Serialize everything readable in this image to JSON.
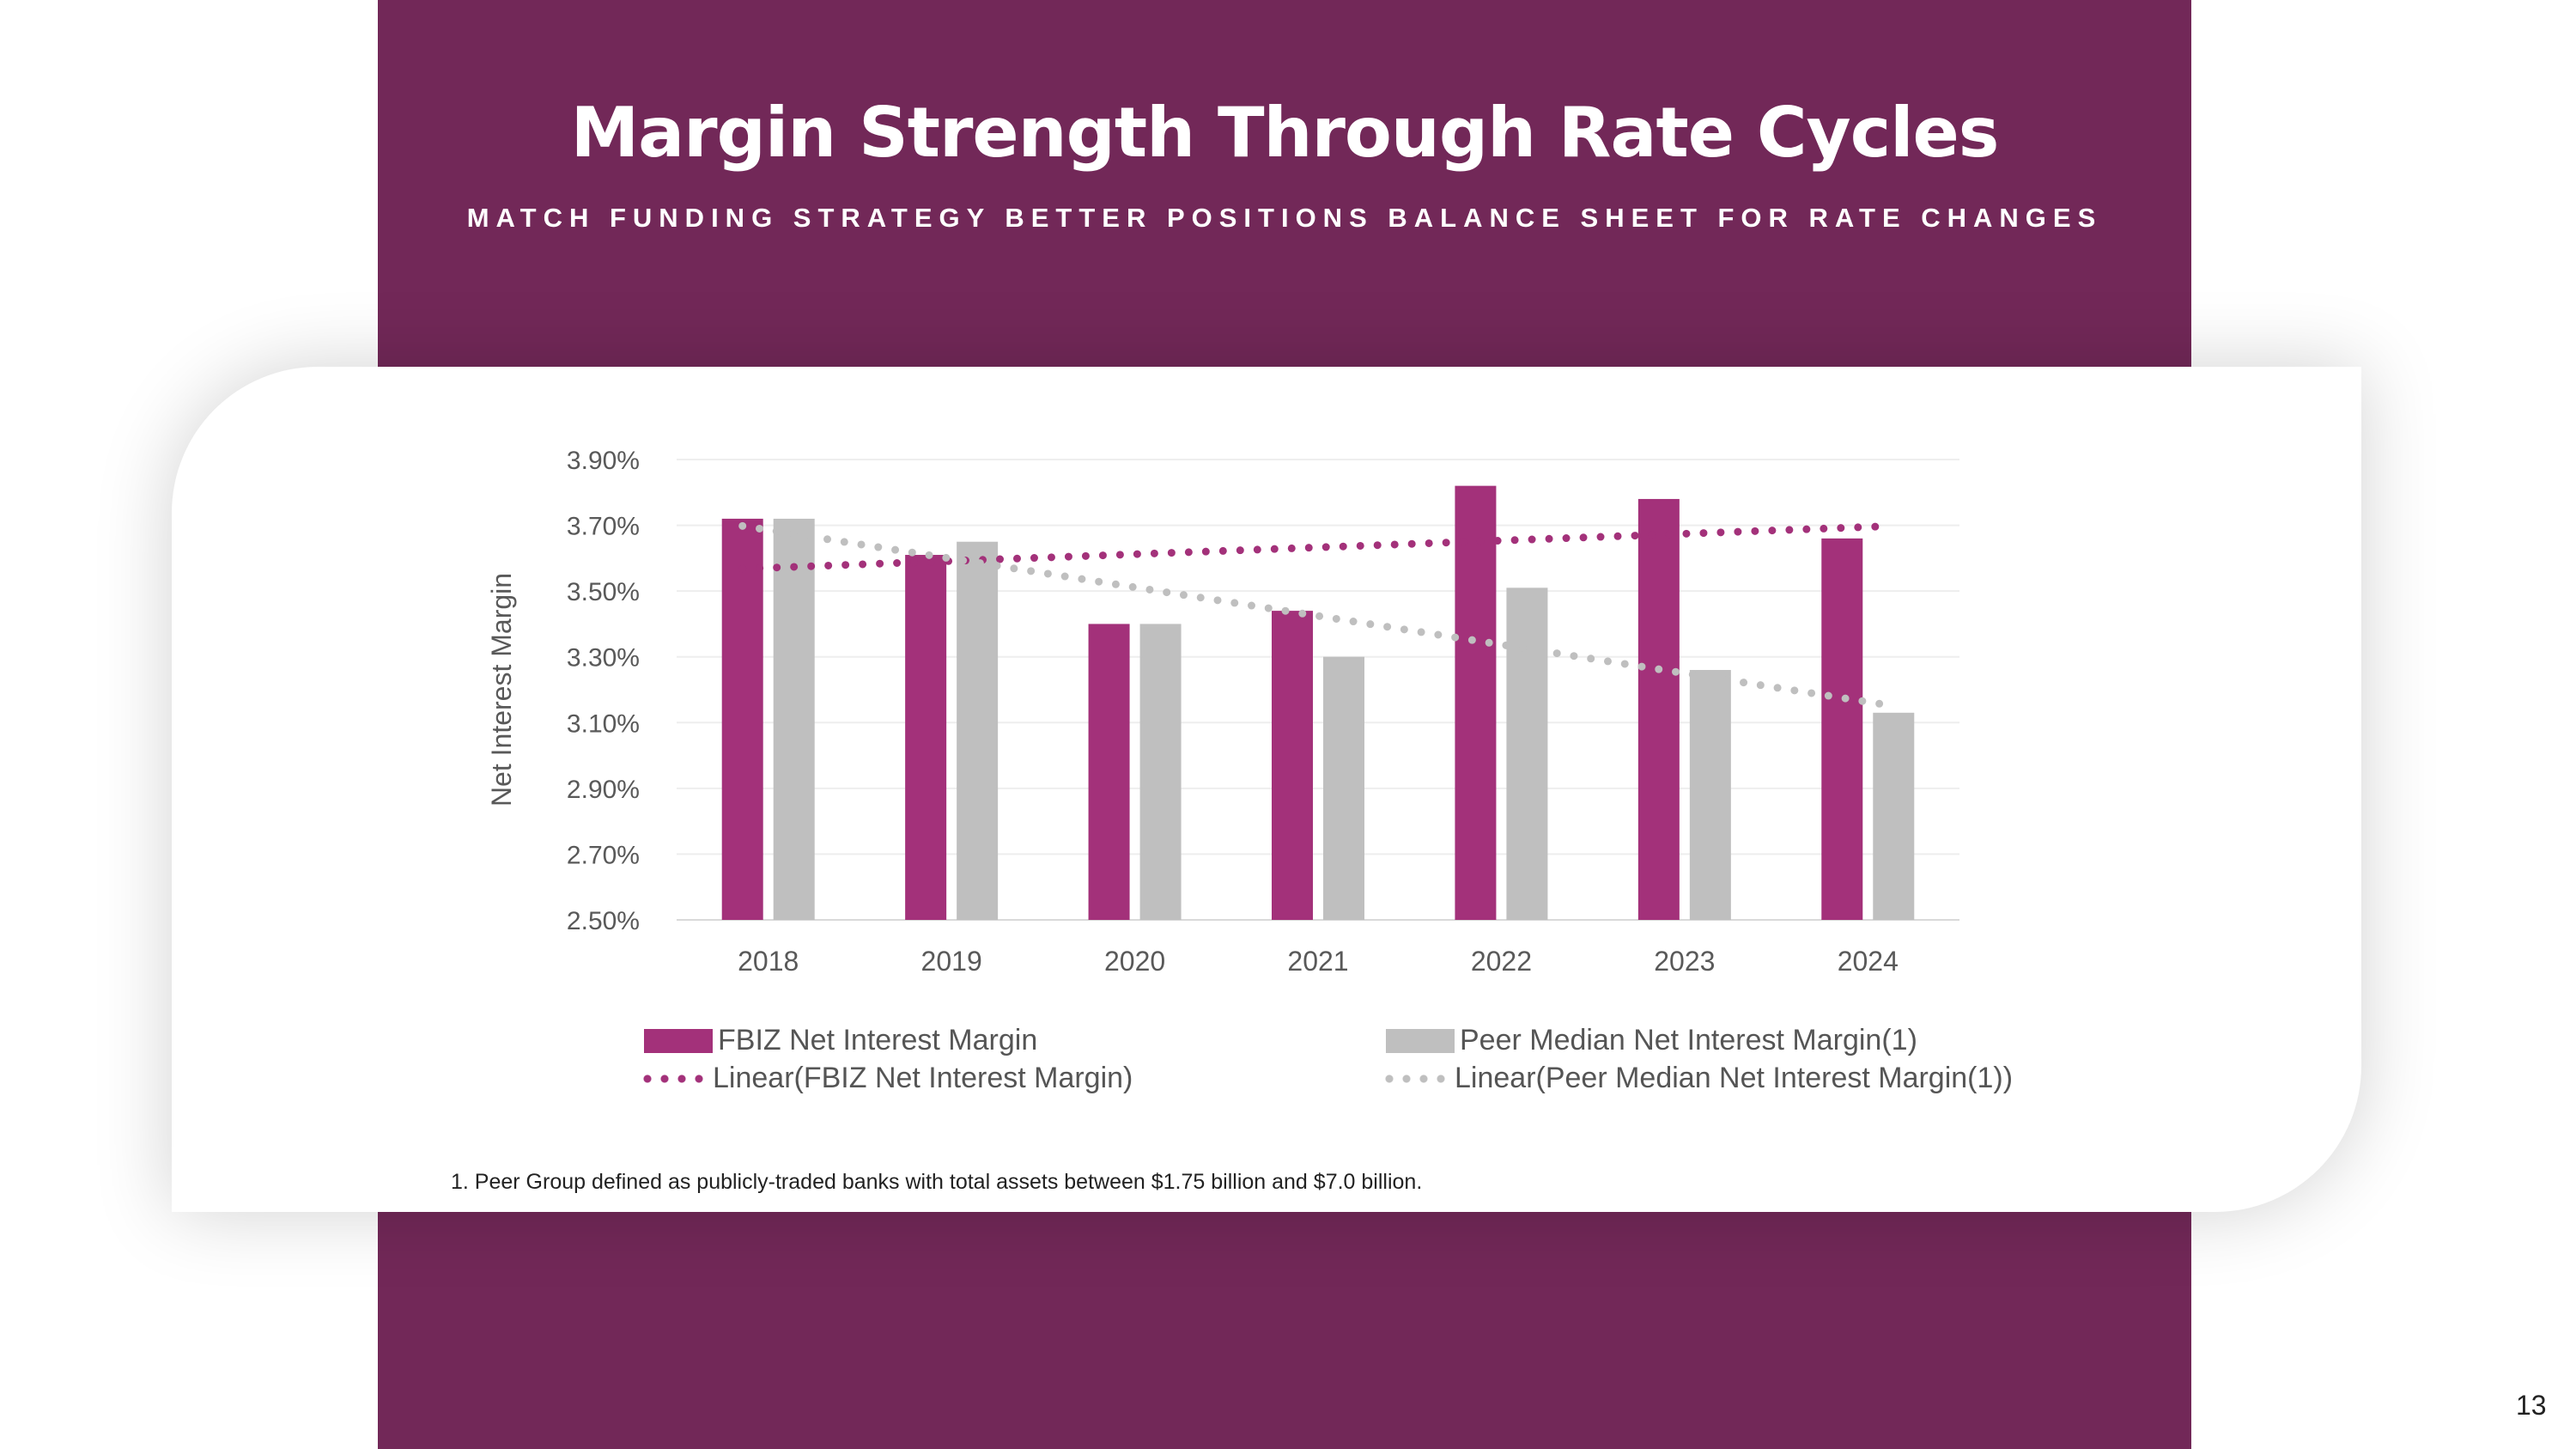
{
  "title": "Margin Strength Through Rate Cycles",
  "subtitle": "MATCH FUNDING STRATEGY BETTER POSITIONS BALANCE SHEET FOR RATE CHANGES",
  "footnote": "1.   Peer Group defined as publicly-traded banks with total assets between $1.75 billion and $7.0 billion.",
  "page_number": "13",
  "colors": {
    "band": "#722858",
    "fbiz": "#A3317A",
    "peer": "#BFBFBF"
  },
  "chart_data": {
    "type": "bar",
    "categories": [
      "2018",
      "2019",
      "2020",
      "2021",
      "2022",
      "2023",
      "2024"
    ],
    "series": [
      {
        "name": "FBIZ Net Interest Margin",
        "values": [
          3.72,
          3.61,
          3.4,
          3.44,
          3.82,
          3.78,
          3.66
        ]
      },
      {
        "name": "Peer Median Net Interest Margin(1)",
        "values": [
          3.72,
          3.65,
          3.4,
          3.3,
          3.51,
          3.26,
          3.13
        ]
      }
    ],
    "trendlines": [
      {
        "name": "Linear(FBIZ Net Interest Margin)",
        "of": 0
      },
      {
        "name": "Linear(Peer Median Net Interest Margin(1))",
        "of": 1
      }
    ],
    "ylabel": "Net Interest Margin",
    "ylim": [
      2.5,
      3.9
    ],
    "yticks": [
      "2.50%",
      "2.70%",
      "2.90%",
      "3.10%",
      "3.30%",
      "3.50%",
      "3.70%",
      "3.90%"
    ],
    "grid": true,
    "legend": "bottom"
  }
}
